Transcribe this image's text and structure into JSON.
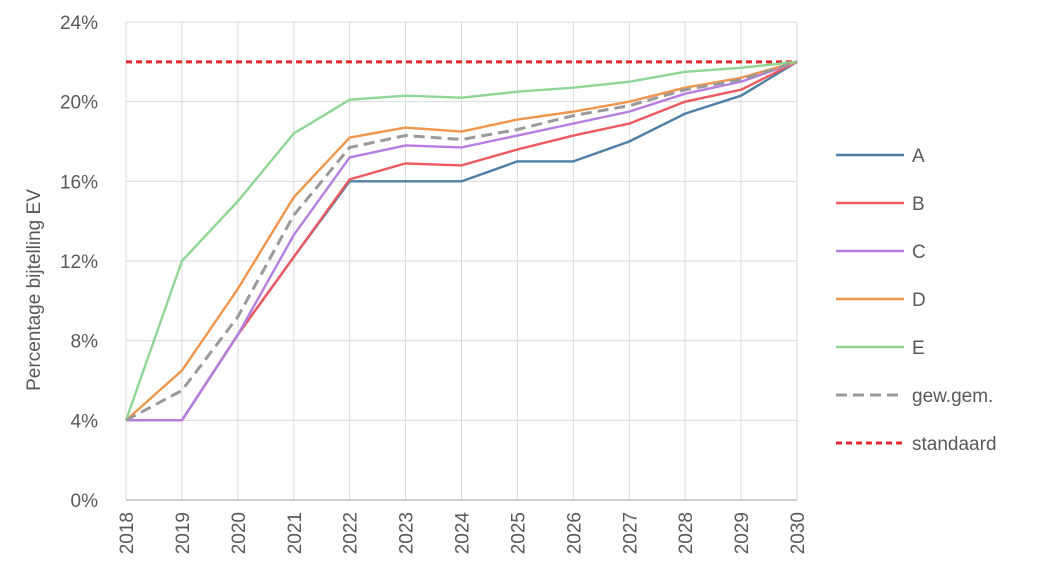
{
  "chart_data": {
    "type": "line",
    "title": "",
    "xlabel": "",
    "ylabel": "Percentage bijtelling EV",
    "x": [
      "2018",
      "2019",
      "2020",
      "2021",
      "2022",
      "2023",
      "2024",
      "2025",
      "2026",
      "2027",
      "2028",
      "2029",
      "2030"
    ],
    "ylim": [
      0,
      24
    ],
    "y_ticks": [
      {
        "value": 0,
        "label": "0%"
      },
      {
        "value": 4,
        "label": "4%"
      },
      {
        "value": 8,
        "label": "8%"
      },
      {
        "value": 12,
        "label": "12%"
      },
      {
        "value": 16,
        "label": "16%"
      },
      {
        "value": 20,
        "label": "20%"
      },
      {
        "value": 24,
        "label": "24%"
      }
    ],
    "grid": true,
    "legend_position": "right",
    "series": [
      {
        "name": "A",
        "color": "#4e7fa6",
        "style": "solid",
        "values": [
          4,
          4,
          8.3,
          12.2,
          16,
          16,
          16,
          17,
          17,
          18,
          19.4,
          20.3,
          22
        ]
      },
      {
        "name": "B",
        "color": "#ec5a5f",
        "style": "solid",
        "values": [
          4,
          4,
          8.3,
          12.2,
          16.1,
          16.9,
          16.8,
          17.6,
          18.3,
          18.9,
          20.0,
          20.6,
          22
        ]
      },
      {
        "name": "C",
        "color": "#b57ee0",
        "style": "solid",
        "values": [
          4,
          4,
          8.3,
          13.3,
          17.2,
          17.8,
          17.7,
          18.3,
          18.9,
          19.5,
          20.4,
          21.0,
          22
        ]
      },
      {
        "name": "D",
        "color": "#f0954c",
        "style": "solid",
        "values": [
          4,
          6.5,
          10.6,
          15.2,
          18.2,
          18.7,
          18.5,
          19.1,
          19.5,
          20.0,
          20.7,
          21.2,
          22
        ]
      },
      {
        "name": "E",
        "color": "#8fd694",
        "style": "solid",
        "values": [
          4,
          12,
          15,
          18.4,
          20.1,
          20.3,
          20.2,
          20.5,
          20.7,
          21.0,
          21.5,
          21.7,
          22
        ]
      },
      {
        "name": "gew.gem.",
        "color": "#9a9a9a",
        "style": "dashed",
        "values": [
          4,
          5.5,
          9.2,
          14.3,
          17.7,
          18.3,
          18.1,
          18.6,
          19.3,
          19.8,
          20.6,
          21.1,
          22
        ]
      },
      {
        "name": "standaard",
        "color": "#e0282f",
        "style": "dotted",
        "values": [
          22,
          22,
          22,
          22,
          22,
          22,
          22,
          22,
          22,
          22,
          22,
          22,
          22
        ]
      }
    ]
  }
}
